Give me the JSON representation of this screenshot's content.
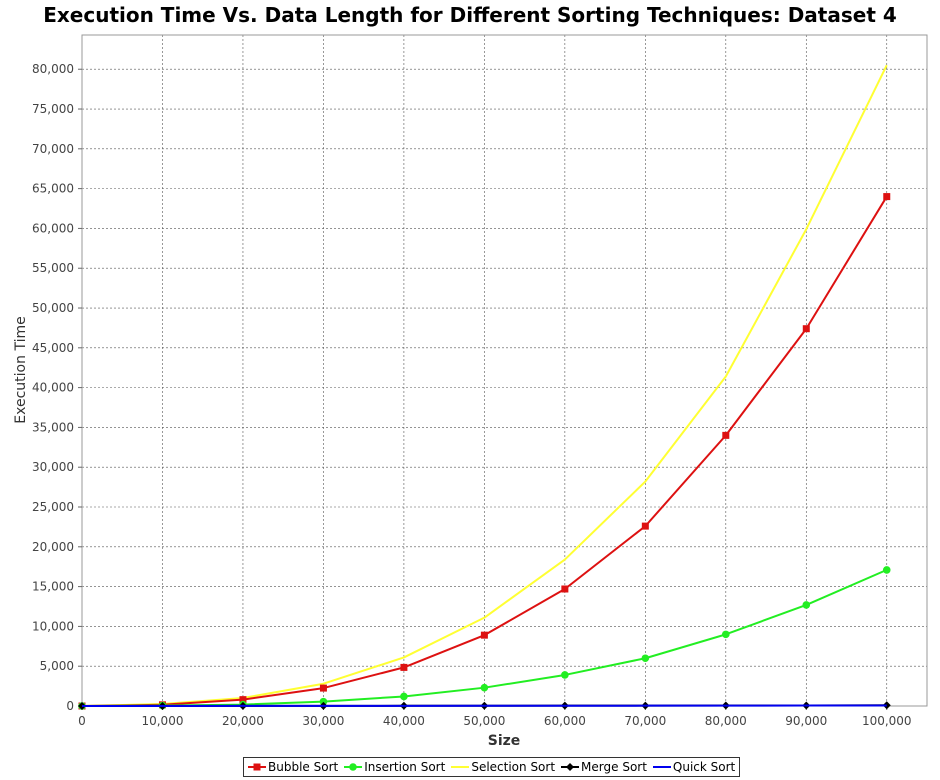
{
  "chart_data": {
    "type": "line",
    "title": "Execution Time Vs. Data Length for Different Sorting Techniques: Dataset 4",
    "xlabel": "Size",
    "ylabel": "Execution Time",
    "x": [
      0,
      10000,
      20000,
      30000,
      40000,
      50000,
      60000,
      70000,
      80000,
      90000,
      100000
    ],
    "x_tick_labels": [
      "0",
      "10,000",
      "20,000",
      "30,000",
      "40,000",
      "50,000",
      "60,000",
      "70,000",
      "80,000",
      "90,000",
      "100,000"
    ],
    "y_tick_labels": [
      "0",
      "5,000",
      "10,000",
      "15,000",
      "20,000",
      "25,000",
      "30,000",
      "35,000",
      "40,000",
      "45,000",
      "50,000",
      "55,000",
      "60,000",
      "65,000",
      "70,000",
      "75,000",
      "80,000"
    ],
    "y_ticks": [
      0,
      5000,
      10000,
      15000,
      20000,
      25000,
      30000,
      35000,
      40000,
      45000,
      50000,
      55000,
      60000,
      65000,
      70000,
      75000,
      80000
    ],
    "xlim": [
      0,
      105000
    ],
    "ylim": [
      0,
      84300
    ],
    "grid": true,
    "legend_position": "bottom-center",
    "series": [
      {
        "name": "Bubble Sort",
        "color": "#dd1111",
        "marker": "square",
        "values": [
          0,
          150,
          800,
          2250,
          4850,
          8900,
          14700,
          22600,
          34000,
          47400,
          64000
        ]
      },
      {
        "name": "Insertion Sort",
        "color": "#22ee22",
        "marker": "circle",
        "values": [
          0,
          50,
          180,
          550,
          1200,
          2300,
          3900,
          6000,
          9000,
          12700,
          17100
        ]
      },
      {
        "name": "Selection Sort",
        "color": "#ffff33",
        "marker": "none",
        "values": [
          0,
          250,
          1000,
          2800,
          6100,
          11100,
          18400,
          28200,
          41400,
          59900,
          80500
        ]
      },
      {
        "name": "Merge Sort",
        "color": "#000000",
        "marker": "diamond",
        "values": [
          0,
          5,
          10,
          15,
          25,
          30,
          40,
          50,
          60,
          70,
          90
        ]
      },
      {
        "name": "Quick Sort",
        "color": "#0000ee",
        "marker": "none",
        "values": [
          0,
          5,
          10,
          15,
          20,
          25,
          30,
          40,
          50,
          60,
          70
        ]
      }
    ]
  }
}
